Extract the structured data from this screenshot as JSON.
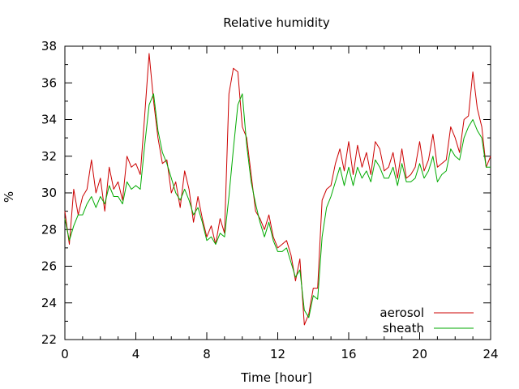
{
  "chart_data": {
    "type": "line",
    "title": "Relative humidity",
    "xlabel": "Time [hour]",
    "ylabel": "%",
    "xlim": [
      0,
      24
    ],
    "ylim": [
      22,
      38
    ],
    "xticks": [
      0,
      4,
      8,
      12,
      16,
      20,
      24
    ],
    "yticks": [
      22,
      24,
      26,
      28,
      30,
      32,
      34,
      36,
      38
    ],
    "xtick_labels": [
      "0",
      "4",
      "8",
      "12",
      "16",
      "20",
      "24"
    ],
    "ytick_labels": [
      "22",
      "24",
      "26",
      "28",
      "30",
      "32",
      "34",
      "36",
      "38"
    ],
    "grid": false,
    "legend_position": "bottom-right",
    "series": [
      {
        "name": "aerosol",
        "color": "#cc0000",
        "x": [
          0,
          0.25,
          0.5,
          0.75,
          1,
          1.25,
          1.5,
          1.75,
          2,
          2.25,
          2.5,
          2.75,
          3,
          3.25,
          3.5,
          3.75,
          4,
          4.25,
          4.5,
          4.75,
          5,
          5.25,
          5.5,
          5.75,
          6,
          6.25,
          6.5,
          6.75,
          7,
          7.25,
          7.5,
          7.75,
          8,
          8.25,
          8.5,
          8.75,
          9,
          9.25,
          9.5,
          9.75,
          10,
          10.25,
          10.5,
          10.75,
          11,
          11.25,
          11.5,
          11.75,
          12,
          12.25,
          12.5,
          12.75,
          13,
          13.25,
          13.5,
          13.75,
          14,
          14.25,
          14.5,
          14.75,
          15,
          15.25,
          15.5,
          15.75,
          16,
          16.25,
          16.5,
          16.75,
          17,
          17.25,
          17.5,
          17.75,
          18,
          18.25,
          18.5,
          18.75,
          19,
          19.25,
          19.5,
          19.75,
          20,
          20.25,
          20.5,
          20.75,
          21,
          21.25,
          21.5,
          21.75,
          22,
          22.25,
          22.5,
          22.75,
          23,
          23.25,
          23.5,
          23.75,
          24
        ],
        "y": [
          29.0,
          27.2,
          30.2,
          28.8,
          29.8,
          30.2,
          31.8,
          30.0,
          30.8,
          29.0,
          31.4,
          30.2,
          30.6,
          29.6,
          32.0,
          31.4,
          31.6,
          31.0,
          34.2,
          37.6,
          35.0,
          33.0,
          31.6,
          31.8,
          30.0,
          30.6,
          29.2,
          31.2,
          30.2,
          28.4,
          29.8,
          28.6,
          27.6,
          28.2,
          27.2,
          28.6,
          27.8,
          35.4,
          36.8,
          36.6,
          33.6,
          33.0,
          31.0,
          29.0,
          28.6,
          28.0,
          28.8,
          27.6,
          27.0,
          27.2,
          27.4,
          26.6,
          25.2,
          26.4,
          22.8,
          23.4,
          24.8,
          24.8,
          29.6,
          30.2,
          30.4,
          31.6,
          32.4,
          31.2,
          32.8,
          31.0,
          32.6,
          31.4,
          32.2,
          31.0,
          32.8,
          32.4,
          31.2,
          31.4,
          32.2,
          30.8,
          32.4,
          30.8,
          31.0,
          31.4,
          32.8,
          31.2,
          31.8,
          33.2,
          31.4,
          31.6,
          31.8,
          33.6,
          33.0,
          32.2,
          34.0,
          34.2,
          36.6,
          34.6,
          33.6,
          31.4,
          32.0
        ]
      },
      {
        "name": "sheath",
        "color": "#00aa00",
        "x": [
          0,
          0.25,
          0.5,
          0.75,
          1,
          1.25,
          1.5,
          1.75,
          2,
          2.25,
          2.5,
          2.75,
          3,
          3.25,
          3.5,
          3.75,
          4,
          4.25,
          4.5,
          4.75,
          5,
          5.25,
          5.5,
          5.75,
          6,
          6.25,
          6.5,
          6.75,
          7,
          7.25,
          7.5,
          7.75,
          8,
          8.25,
          8.5,
          8.75,
          9,
          9.25,
          9.5,
          9.75,
          10,
          10.25,
          10.5,
          10.75,
          11,
          11.25,
          11.5,
          11.75,
          12,
          12.25,
          12.5,
          12.75,
          13,
          13.25,
          13.5,
          13.75,
          14,
          14.25,
          14.5,
          14.75,
          15,
          15.25,
          15.5,
          15.75,
          16,
          16.25,
          16.5,
          16.75,
          17,
          17.25,
          17.5,
          17.75,
          18,
          18.25,
          18.5,
          18.75,
          19,
          19.25,
          19.5,
          19.75,
          20,
          20.25,
          20.5,
          20.75,
          21,
          21.25,
          21.5,
          21.75,
          22,
          22.25,
          22.5,
          22.75,
          23,
          23.25,
          23.5,
          23.75,
          24
        ],
        "y": [
          28.6,
          27.4,
          28.2,
          28.8,
          28.8,
          29.4,
          29.8,
          29.2,
          29.8,
          29.4,
          30.4,
          29.8,
          29.8,
          29.4,
          30.6,
          30.2,
          30.4,
          30.2,
          32.6,
          34.8,
          35.4,
          33.4,
          32.2,
          31.6,
          30.8,
          30.0,
          29.6,
          30.2,
          29.6,
          28.8,
          29.2,
          28.4,
          27.4,
          27.6,
          27.2,
          27.8,
          27.6,
          29.8,
          32.4,
          34.8,
          35.4,
          32.6,
          30.6,
          29.4,
          28.4,
          27.6,
          28.4,
          27.4,
          26.8,
          26.8,
          27.0,
          26.2,
          25.4,
          25.8,
          23.6,
          23.2,
          24.4,
          24.2,
          27.6,
          29.2,
          29.8,
          30.6,
          31.4,
          30.4,
          31.4,
          30.4,
          31.4,
          30.8,
          31.2,
          30.6,
          31.8,
          31.4,
          30.8,
          30.8,
          31.4,
          30.4,
          31.6,
          30.6,
          30.6,
          30.8,
          31.6,
          30.8,
          31.2,
          32.0,
          30.6,
          31.0,
          31.2,
          32.4,
          32.0,
          31.8,
          33.0,
          33.6,
          34.0,
          33.4,
          33.0,
          31.4,
          31.4
        ]
      }
    ]
  }
}
